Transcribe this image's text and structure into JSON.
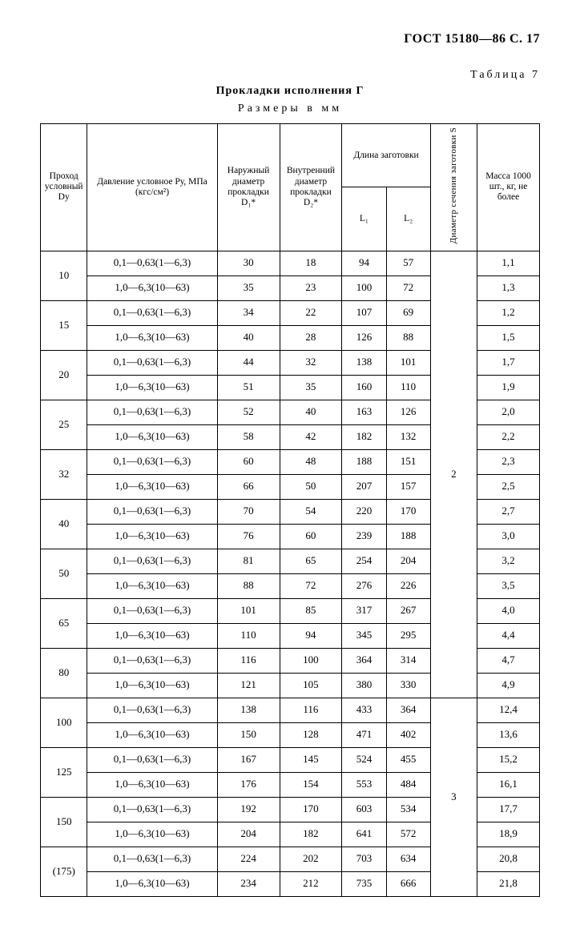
{
  "doc_id": "ГОСТ 15180—86 С. 17",
  "table_label": "Таблица 7",
  "title": "Прокладки исполнения Г",
  "subtitle": "Размеры в мм",
  "headers": {
    "dy": "Проход условный Dу",
    "pressure": "Давление условное Pу, МПа (кгс/см²)",
    "d1": "Наружный диаметр прокладки D₁*",
    "d2": "Внутрен­ний диа­метр прокладки D₂*",
    "length_group": "Длина заготовки",
    "l1": "L₁",
    "l2": "L₂",
    "section": "Диаметр се­чения заго­товки S",
    "mass": "Масса 1000 шт., кг, не более"
  },
  "section_vals": [
    "2",
    "3"
  ],
  "rows": [
    {
      "dy": "10",
      "p": "0,1—0,63(1—6,3)",
      "d1": "30",
      "d2": "18",
      "l1": "94",
      "l2": "57",
      "m": "1,1"
    },
    {
      "p": "1,0—6,3(10—63)",
      "d1": "35",
      "d2": "23",
      "l1": "100",
      "l2": "72",
      "m": "1,3"
    },
    {
      "dy": "15",
      "p": "0,1—0,63(1—6,3)",
      "d1": "34",
      "d2": "22",
      "l1": "107",
      "l2": "69",
      "m": "1,2"
    },
    {
      "p": "1,0—6,3(10—63)",
      "d1": "40",
      "d2": "28",
      "l1": "126",
      "l2": "88",
      "m": "1,5"
    },
    {
      "dy": "20",
      "p": "0,1—0,63(1—6,3)",
      "d1": "44",
      "d2": "32",
      "l1": "138",
      "l2": "101",
      "m": "1,7"
    },
    {
      "p": "1,0—6,3(10—63)",
      "d1": "51",
      "d2": "35",
      "l1": "160",
      "l2": "110",
      "m": "1,9"
    },
    {
      "dy": "25",
      "p": "0,1—0,63(1—6,3)",
      "d1": "52",
      "d2": "40",
      "l1": "163",
      "l2": "126",
      "m": "2,0"
    },
    {
      "p": "1,0—6,3(10—63)",
      "d1": "58",
      "d2": "42",
      "l1": "182",
      "l2": "132",
      "m": "2,2"
    },
    {
      "dy": "32",
      "p": "0,1—0,63(1—6,3)",
      "d1": "60",
      "d2": "48",
      "l1": "188",
      "l2": "151",
      "m": "2,3"
    },
    {
      "p": "1,0—6,3(10—63)",
      "d1": "66",
      "d2": "50",
      "l1": "207",
      "l2": "157",
      "m": "2,5"
    },
    {
      "dy": "40",
      "p": "0,1—0,63(1—6,3)",
      "d1": "70",
      "d2": "54",
      "l1": "220",
      "l2": "170",
      "m": "2,7"
    },
    {
      "p": "1,0—6,3(10—63)",
      "d1": "76",
      "d2": "60",
      "l1": "239",
      "l2": "188",
      "m": "3,0"
    },
    {
      "dy": "50",
      "p": "0,1—0,63(1—6,3)",
      "d1": "81",
      "d2": "65",
      "l1": "254",
      "l2": "204",
      "m": "3,2"
    },
    {
      "p": "1,0—6,3(10—63)",
      "d1": "88",
      "d2": "72",
      "l1": "276",
      "l2": "226",
      "m": "3,5"
    },
    {
      "dy": "65",
      "p": "0,1—0,63(1—6,3)",
      "d1": "101",
      "d2": "85",
      "l1": "317",
      "l2": "267",
      "m": "4,0"
    },
    {
      "p": "1,0—6,3(10—63)",
      "d1": "110",
      "d2": "94",
      "l1": "345",
      "l2": "295",
      "m": "4,4"
    },
    {
      "dy": "80",
      "p": "0,1—0,63(1—6,3)",
      "d1": "116",
      "d2": "100",
      "l1": "364",
      "l2": "314",
      "m": "4,7"
    },
    {
      "p": "1,0—6,3(10—63)",
      "d1": "121",
      "d2": "105",
      "l1": "380",
      "l2": "330",
      "m": "4,9"
    },
    {
      "dy": "100",
      "p": "0,1—0,63(1—6,3)",
      "d1": "138",
      "d2": "116",
      "l1": "433",
      "l2": "364",
      "m": "12,4"
    },
    {
      "p": "1,0—6,3(10—63)",
      "d1": "150",
      "d2": "128",
      "l1": "471",
      "l2": "402",
      "m": "13,6"
    },
    {
      "dy": "125",
      "p": "0,1—0,63(1—6,3)",
      "d1": "167",
      "d2": "145",
      "l1": "524",
      "l2": "455",
      "m": "15,2"
    },
    {
      "p": "1,0—6,3(10—63)",
      "d1": "176",
      "d2": "154",
      "l1": "553",
      "l2": "484",
      "m": "16,1"
    },
    {
      "dy": "150",
      "p": "0,1—0,63(1—6,3)",
      "d1": "192",
      "d2": "170",
      "l1": "603",
      "l2": "534",
      "m": "17,7"
    },
    {
      "p": "1,0—6,3(10—63)",
      "d1": "204",
      "d2": "182",
      "l1": "641",
      "l2": "572",
      "m": "18,9"
    },
    {
      "dy": "(175)",
      "p": "0,1—0,63(1—6,3)",
      "d1": "224",
      "d2": "202",
      "l1": "703",
      "l2": "634",
      "m": "20,8"
    },
    {
      "p": "1,0—6,3(10—63)",
      "d1": "234",
      "d2": "212",
      "l1": "735",
      "l2": "666",
      "m": "21,8"
    }
  ]
}
